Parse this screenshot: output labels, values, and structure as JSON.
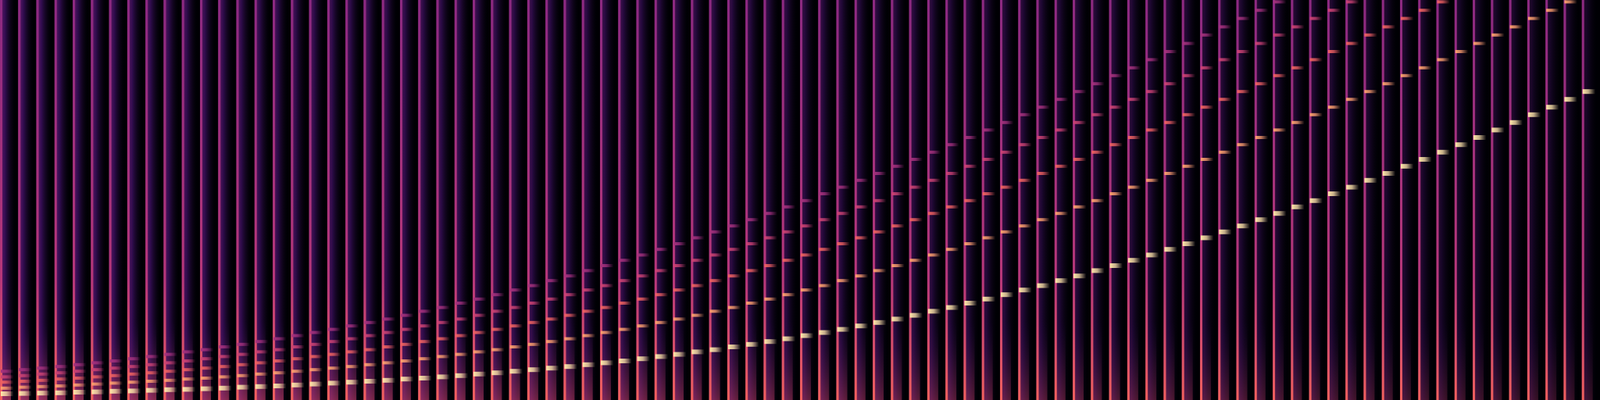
{
  "chart_data": {
    "type": "spectrogram",
    "tick_labels": false,
    "xlim": [
      0,
      88
    ],
    "ylim": [
      0,
      128
    ],
    "onsets": [
      0,
      1,
      2,
      3,
      4,
      5,
      6,
      7,
      8,
      9,
      10,
      11,
      12,
      13,
      14,
      15,
      16,
      17,
      18,
      19,
      20,
      21,
      22,
      23,
      24,
      25,
      26,
      27,
      28,
      29,
      30,
      31,
      32,
      33,
      34,
      35,
      36,
      37,
      38,
      39,
      40,
      41,
      42,
      43,
      44,
      45,
      46,
      47,
      48,
      49,
      50,
      51,
      52,
      53,
      54,
      55,
      56,
      57,
      58,
      59,
      60,
      61,
      62,
      63,
      64,
      65,
      66,
      67,
      68,
      69,
      70,
      71,
      72,
      73,
      74,
      75,
      76,
      77,
      78,
      79,
      80,
      81,
      82,
      83,
      84,
      85,
      86,
      87
    ],
    "partials": [
      [
        2.0,
        3.8,
        5.7,
        7.4,
        9.2
      ],
      [
        2.1,
        4.1,
        6.0,
        7.8,
        9.7
      ],
      [
        2.2,
        4.3,
        6.3,
        8.3,
        10.2
      ],
      [
        2.3,
        4.5,
        6.7,
        8.7,
        10.7
      ],
      [
        2.5,
        4.8,
        7.0,
        9.2,
        11.3
      ],
      [
        2.6,
        5.1,
        7.4,
        9.7,
        11.9
      ],
      [
        2.8,
        5.4,
        7.8,
        10.2,
        12.5
      ],
      [
        2.9,
        5.7,
        8.3,
        10.7,
        13.2
      ],
      [
        3.1,
        6.0,
        8.7,
        11.3,
        13.9
      ],
      [
        3.3,
        6.3,
        9.2,
        11.9,
        14.6
      ],
      [
        3.4,
        6.7,
        9.7,
        12.5,
        15.4
      ],
      [
        3.6,
        7.0,
        10.2,
        13.2,
        16.1
      ],
      [
        3.8,
        7.4,
        10.7,
        13.9,
        17.0
      ],
      [
        4.1,
        7.8,
        11.3,
        14.6,
        17.8
      ],
      [
        4.3,
        8.3,
        11.9,
        15.4,
        18.7
      ],
      [
        4.5,
        8.7,
        12.5,
        16.1,
        19.6
      ],
      [
        4.8,
        9.2,
        13.2,
        17.0,
        20.6
      ],
      [
        5.1,
        9.7,
        13.9,
        17.8,
        21.6
      ],
      [
        5.4,
        10.2,
        14.6,
        18.7,
        22.6
      ],
      [
        5.7,
        10.7,
        15.4,
        19.6,
        23.7
      ],
      [
        6.0,
        11.3,
        16.1,
        20.6,
        24.8
      ],
      [
        6.3,
        11.9,
        17.0,
        21.6,
        25.9
      ],
      [
        6.7,
        12.5,
        17.8,
        22.6,
        27.1
      ],
      [
        7.0,
        13.2,
        18.7,
        23.7,
        28.4
      ],
      [
        7.4,
        13.9,
        19.6,
        24.8,
        29.6
      ],
      [
        7.8,
        14.6,
        20.6,
        25.9,
        31.0
      ],
      [
        8.3,
        15.4,
        21.6,
        27.1,
        32.3
      ],
      [
        8.7,
        16.1,
        22.6,
        28.4,
        33.7
      ],
      [
        9.2,
        17.0,
        23.7,
        29.6,
        35.2
      ],
      [
        9.7,
        17.8,
        24.8,
        31.0,
        36.6
      ],
      [
        10.2,
        18.7,
        25.9,
        32.3,
        38.2
      ],
      [
        10.7,
        19.6,
        27.1,
        33.7,
        39.7
      ],
      [
        11.3,
        20.6,
        28.4,
        35.2,
        41.4
      ],
      [
        11.9,
        21.6,
        29.6,
        36.6,
        43.0
      ],
      [
        12.5,
        22.6,
        31.0,
        38.2,
        44.7
      ],
      [
        13.2,
        23.7,
        32.3,
        39.7,
        46.4
      ],
      [
        13.9,
        24.8,
        33.7,
        41.4,
        48.2
      ],
      [
        14.6,
        25.9,
        35.2,
        43.0,
        50.0
      ],
      [
        15.4,
        27.1,
        36.6,
        44.7,
        51.9
      ],
      [
        16.1,
        28.4,
        38.2,
        46.4,
        53.8
      ],
      [
        17.0,
        29.6,
        39.7,
        48.2,
        55.7
      ],
      [
        17.8,
        31.0,
        41.4,
        50.0,
        57.7
      ],
      [
        18.7,
        32.3,
        43.0,
        51.9,
        59.7
      ],
      [
        19.6,
        33.7,
        44.7,
        53.8,
        61.8
      ],
      [
        20.6,
        35.2,
        46.4,
        55.7,
        63.8
      ],
      [
        21.6,
        36.6,
        48.2,
        57.7,
        66.0
      ],
      [
        22.6,
        38.2,
        50.0,
        59.7,
        68.1
      ],
      [
        23.7,
        39.7,
        51.9,
        61.8,
        70.3
      ],
      [
        24.8,
        41.4,
        53.8,
        63.8,
        72.5
      ],
      [
        25.9,
        43.0,
        55.7,
        66.0,
        74.8
      ],
      [
        27.1,
        44.7,
        57.7,
        68.1,
        77.0
      ],
      [
        28.4,
        46.4,
        59.7,
        70.3,
        79.3
      ],
      [
        29.6,
        48.2,
        61.8,
        72.5,
        81.7
      ],
      [
        31.0,
        50.0,
        63.8,
        74.8,
        84.0
      ],
      [
        32.3,
        51.9,
        66.0,
        77.0,
        86.4
      ],
      [
        33.7,
        53.8,
        68.1,
        79.3,
        88.8
      ],
      [
        35.2,
        55.7,
        70.3,
        81.7,
        91.3
      ],
      [
        36.6,
        57.7,
        72.5,
        84.0,
        93.7
      ],
      [
        38.2,
        59.7,
        74.8,
        86.4,
        96.2
      ],
      [
        39.7,
        61.8,
        77.0,
        88.8,
        98.7
      ],
      [
        41.4,
        63.8,
        79.3,
        91.3,
        101.2
      ],
      [
        43.0,
        66.0,
        81.7,
        93.7,
        103.8
      ],
      [
        44.7,
        68.1,
        84.0,
        96.2,
        106.3
      ],
      [
        46.4,
        70.3,
        86.4,
        98.7,
        108.9
      ],
      [
        48.2,
        72.5,
        88.8,
        101.2,
        111.5
      ],
      [
        50.0,
        74.8,
        91.3,
        103.8,
        114.1
      ],
      [
        51.9,
        77.0,
        93.7,
        106.3,
        116.8
      ],
      [
        53.8,
        79.3,
        96.2,
        108.9,
        119.4
      ],
      [
        55.7,
        81.7,
        98.7,
        111.5,
        122.1
      ],
      [
        57.7,
        84.0,
        101.2,
        114.1,
        124.7
      ],
      [
        59.7,
        86.4,
        103.8,
        116.8,
        127.4
      ],
      [
        61.8,
        88.8,
        106.3,
        119.4
      ],
      [
        63.8,
        91.3,
        108.9,
        122.1
      ],
      [
        66.0,
        93.7,
        111.5,
        124.7
      ],
      [
        68.1,
        96.2,
        114.1,
        127.4
      ],
      [
        70.3,
        98.7,
        116.8
      ],
      [
        72.5,
        101.2,
        119.4
      ],
      [
        74.8,
        103.8,
        122.1
      ],
      [
        77.0,
        106.3,
        124.7
      ],
      [
        79.3,
        108.9,
        127.4
      ],
      [
        81.7,
        111.5
      ],
      [
        84.0,
        114.1
      ],
      [
        86.4,
        116.8
      ],
      [
        88.8,
        119.4
      ],
      [
        91.3,
        122.1
      ],
      [
        93.7,
        124.7
      ],
      [
        96.2,
        127.4
      ],
      [
        98.7
      ]
    ]
  }
}
